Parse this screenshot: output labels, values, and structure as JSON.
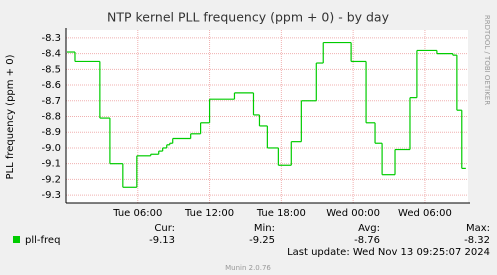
{
  "chart_data": {
    "type": "step",
    "title": "NTP kernel PLL frequency (ppm + 0) - by day",
    "y_label": "PLL frequency (ppm + 0)",
    "side_text": "RRDTOOL / TOBI OETIKER",
    "x": [
      0.08,
      0.75,
      2.83,
      3.67,
      4.75,
      5.92,
      7.08,
      7.75,
      8.08,
      8.42,
      8.67,
      8.92,
      10.42,
      11.25,
      12.0,
      14.08,
      15.67,
      16.17,
      16.83,
      17.75,
      18.83,
      19.67,
      20.92,
      21.5,
      23.83,
      25.08,
      25.83,
      26.42,
      27.5,
      28.75,
      29.33,
      31.0,
      32.33,
      32.67,
      33.08,
      33.42
    ],
    "series": [
      {
        "name": "pll-freq",
        "color": "#00cc00",
        "values": [
          -8.39,
          -8.45,
          -8.81,
          -9.1,
          -9.25,
          -9.05,
          -9.04,
          -9.02,
          -9.0,
          -8.98,
          -8.97,
          -8.94,
          -8.91,
          -8.84,
          -8.69,
          -8.65,
          -8.79,
          -8.86,
          -9.0,
          -9.11,
          -8.96,
          -8.7,
          -8.46,
          -8.33,
          -8.45,
          -8.84,
          -8.97,
          -9.17,
          -9.01,
          -8.68,
          -8.38,
          -8.4,
          -8.41,
          -8.76,
          -9.13,
          -9.13
        ]
      }
    ],
    "xlim": [
      0,
      33.6
    ],
    "xticks": [
      {
        "value": 6,
        "label": "Tue 06:00"
      },
      {
        "value": 12,
        "label": "Tue 12:00"
      },
      {
        "value": 18,
        "label": "Tue 18:00"
      },
      {
        "value": 24,
        "label": "Wed 00:00"
      },
      {
        "value": 30,
        "label": "Wed 06:00"
      }
    ],
    "ylim": [
      -9.35,
      -8.25
    ],
    "yticks": [
      -8.3,
      -8.4,
      -8.5,
      -8.6,
      -8.7,
      -8.8,
      -8.9,
      {
        "value": -9,
        "label": "-9.0"
      },
      -9.1,
      -9.2,
      -9.3
    ],
    "grid": true,
    "summary": {
      "headers": [
        "Cur:",
        "Min:",
        "Avg:",
        "Max:"
      ],
      "values": [
        -9.13,
        -9.25,
        -8.76,
        -8.32
      ]
    },
    "last_update": "Last update: Wed Nov 13 09:25:07 2024",
    "footer": "Munin 2.0.76"
  }
}
